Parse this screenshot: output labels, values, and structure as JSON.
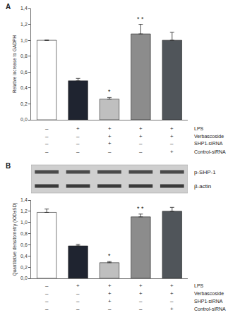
{
  "chart_data": [
    {
      "type": "bar",
      "title": "A",
      "y_label": "Relative increase to GADPH",
      "categories": [
        null,
        null,
        null,
        null,
        null
      ],
      "values": [
        1.0,
        0.49,
        0.26,
        1.08,
        1.0
      ],
      "errors": [
        0,
        0.03,
        0.02,
        0.12,
        0.1
      ],
      "colors": [
        "#ffffff",
        "#1f2430",
        "#bfbfbf",
        "#8c8c8c",
        "#50555a"
      ],
      "ylim": [
        0,
        1.4
      ],
      "yticks": [
        {
          "value": 0,
          "label": "0,0"
        },
        {
          "value": 0.2,
          "label": "0,2"
        },
        {
          "value": 0.4,
          "label": "0,4"
        },
        {
          "value": 0.6,
          "label": "0,6"
        },
        {
          "value": 0.8,
          "label": "0,8"
        },
        {
          "value": 1.0,
          "label": "1,0"
        },
        {
          "value": 1.2,
          "label": "1,2"
        },
        {
          "value": 1.4,
          "label": "1,4"
        }
      ],
      "grid": false,
      "tick_labels": "y",
      "annotations": [
        {
          "index": 2,
          "text": "*"
        },
        {
          "index": 3,
          "text": "* *"
        }
      ],
      "treatments": [
        {
          "label": "LPS",
          "values": [
            "–",
            "+",
            "+",
            "+",
            "+"
          ]
        },
        {
          "label": "Verbascoside",
          "values": [
            "–",
            "–",
            "+",
            "+",
            "+"
          ]
        },
        {
          "label": "SHP1-siRNA",
          "values": [
            "–",
            "–",
            "+",
            "–",
            "–"
          ]
        },
        {
          "label": "Control-siRNA",
          "values": [
            "–",
            "–",
            "–",
            "–",
            "+"
          ]
        }
      ]
    },
    {
      "type": "bar",
      "title": "B",
      "y_label": "Quantitative densitometry (IOD±SD)",
      "categories": [
        null,
        null,
        null,
        null,
        null
      ],
      "values": [
        1.18,
        0.58,
        0.28,
        1.1,
        1.2
      ],
      "errors": [
        0.06,
        0.03,
        0.02,
        0.05,
        0.07
      ],
      "colors": [
        "#ffffff",
        "#1f2430",
        "#bfbfbf",
        "#8c8c8c",
        "#50555a"
      ],
      "ylim": [
        0,
        1.4
      ],
      "yticks": [
        {
          "value": 0,
          "label": "0,0"
        },
        {
          "value": 0.2,
          "label": "0,2"
        },
        {
          "value": 0.4,
          "label": "0,4"
        },
        {
          "value": 0.6,
          "label": "0,6"
        },
        {
          "value": 0.8,
          "label": "0,8"
        },
        {
          "value": 1.0,
          "label": "1,0"
        },
        {
          "value": 1.2,
          "label": "1,2"
        },
        {
          "value": 1.4,
          "label": "1,4"
        }
      ],
      "grid": false,
      "tick_labels": "y",
      "annotations": [
        {
          "index": 2,
          "text": "*"
        },
        {
          "index": 3,
          "text": "* *"
        }
      ],
      "blot_labels": [
        "p-SHP-1",
        "β-actin"
      ],
      "treatments": [
        {
          "label": "LPS",
          "values": [
            "–",
            "+",
            "+",
            "+",
            "+"
          ]
        },
        {
          "label": "Verbascoside",
          "values": [
            "–",
            "–",
            "+",
            "+",
            "+"
          ]
        },
        {
          "label": "SHP1-siRNA",
          "values": [
            "–",
            "–",
            "+",
            "–",
            "–"
          ]
        },
        {
          "label": "Control-siRNA",
          "values": [
            "–",
            "–",
            "–",
            "–",
            "+"
          ]
        }
      ]
    }
  ]
}
